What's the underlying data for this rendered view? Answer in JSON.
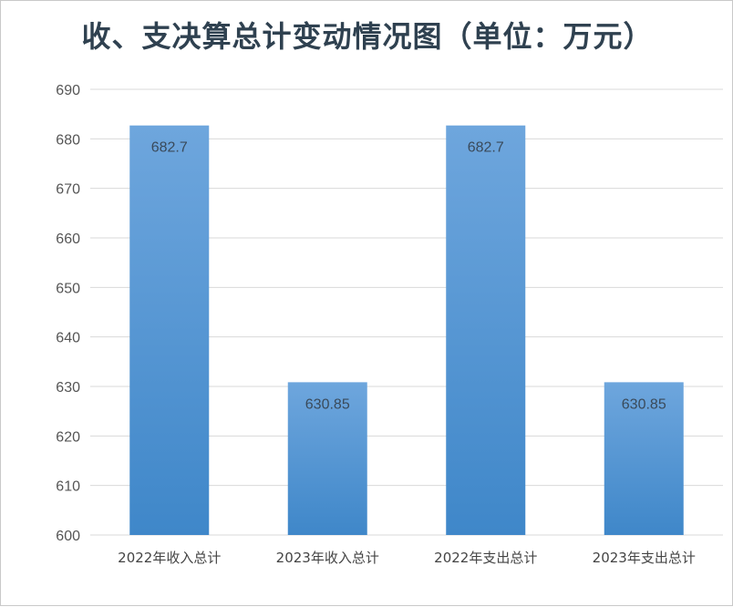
{
  "chart_data": {
    "type": "bar",
    "title": "收、支决算总计变动情况图（单位：万元）",
    "categories": [
      "2022年收入总计",
      "2023年收入总计",
      "2022年支出总计",
      "2023年支出总计"
    ],
    "values": [
      682.7,
      630.85,
      682.7,
      630.85
    ],
    "value_labels": [
      "682.7",
      "630.85",
      "682.7",
      "630.85"
    ],
    "yticks": [
      600,
      610,
      620,
      630,
      640,
      650,
      660,
      670,
      680,
      690
    ],
    "ylim": [
      600,
      690
    ],
    "grid": true,
    "legend": "none",
    "bar_color_top": "#6ea6dd",
    "bar_color_bottom": "#3f87c9",
    "grid_color": "#d9d9d9"
  }
}
